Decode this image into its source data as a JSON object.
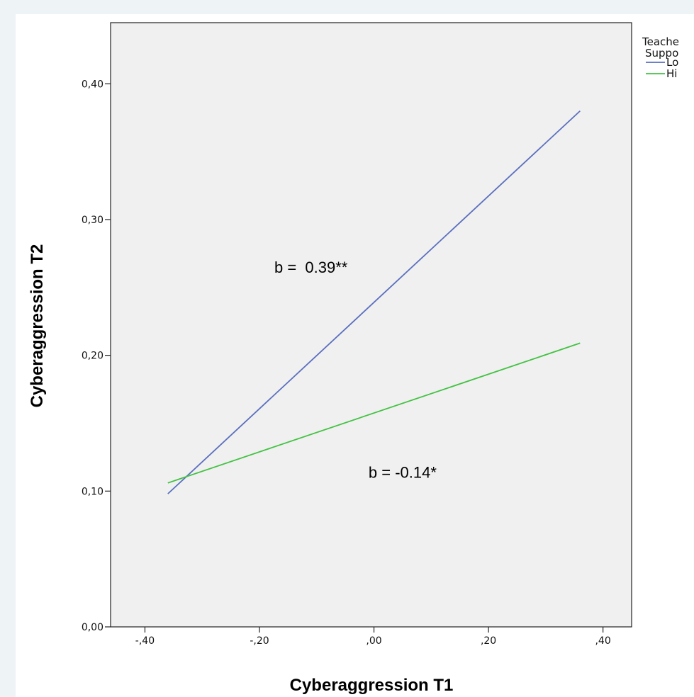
{
  "chart_data": {
    "type": "line",
    "xlabel": "Cyberaggression T1",
    "ylabel": "Cyberaggression T2",
    "xlim": [
      -0.46,
      0.45
    ],
    "ylim": [
      0.0,
      0.445
    ],
    "x_ticks": [
      -0.4,
      -0.2,
      0.0,
      0.2,
      0.4
    ],
    "x_tick_labels": [
      "-,40",
      "-,20",
      ",00",
      ",20",
      ",40"
    ],
    "y_ticks": [
      0.0,
      0.1,
      0.2,
      0.3,
      0.4
    ],
    "y_tick_labels": [
      "0,00",
      "0,10",
      "0,20",
      "0,30",
      "0,40"
    ],
    "grid": false,
    "legend_title": "Teache\nSuppo",
    "legend_position": "right",
    "series": [
      {
        "name": "Lo",
        "color": "#5a6fbf",
        "x": [
          -0.36,
          0.36
        ],
        "y": [
          0.098,
          0.38
        ]
      },
      {
        "name": "Hi",
        "color": "#43c243",
        "x": [
          -0.36,
          0.36
        ],
        "y": [
          0.106,
          0.209
        ]
      }
    ],
    "annotations": [
      {
        "text": "b =  0.39**",
        "x": -0.11,
        "y": 0.265
      },
      {
        "text": "b = -0.14*",
        "x": 0.05,
        "y": 0.114
      }
    ]
  }
}
